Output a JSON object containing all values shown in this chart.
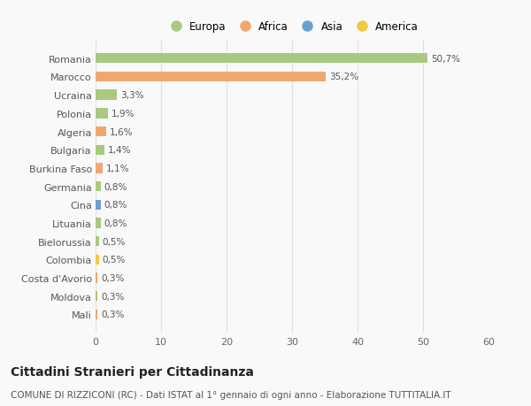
{
  "countries": [
    "Romania",
    "Marocco",
    "Ucraina",
    "Polonia",
    "Algeria",
    "Bulgaria",
    "Burkina Faso",
    "Germania",
    "Cina",
    "Lituania",
    "Bielorussia",
    "Colombia",
    "Costa d'Avorio",
    "Moldova",
    "Mali"
  ],
  "values": [
    50.7,
    35.2,
    3.3,
    1.9,
    1.6,
    1.4,
    1.1,
    0.8,
    0.8,
    0.8,
    0.5,
    0.5,
    0.3,
    0.3,
    0.3
  ],
  "labels": [
    "50,7%",
    "35,2%",
    "3,3%",
    "1,9%",
    "1,6%",
    "1,4%",
    "1,1%",
    "0,8%",
    "0,8%",
    "0,8%",
    "0,5%",
    "0,5%",
    "0,3%",
    "0,3%",
    "0,3%"
  ],
  "continents": [
    "Europa",
    "Africa",
    "Europa",
    "Europa",
    "Africa",
    "Europa",
    "Africa",
    "Europa",
    "Asia",
    "Europa",
    "Europa",
    "America",
    "Africa",
    "Europa",
    "Africa"
  ],
  "continent_colors": {
    "Europa": "#a8c97f",
    "Africa": "#f0a870",
    "Asia": "#6b9fd4",
    "America": "#f5c842"
  },
  "legend_order": [
    "Europa",
    "Africa",
    "Asia",
    "America"
  ],
  "bg_color": "#f9f9f9",
  "grid_color": "#e0e0e0",
  "title": "Cittadini Stranieri per Cittadinanza",
  "subtitle": "COMUNE DI RIZZICONI (RC) - Dati ISTAT al 1° gennaio di ogni anno - Elaborazione TUTTITALIA.IT",
  "xlim": [
    0,
    60
  ],
  "xticks": [
    0,
    10,
    20,
    30,
    40,
    50,
    60
  ],
  "bar_height": 0.55,
  "title_fontsize": 10,
  "subtitle_fontsize": 7.5,
  "tick_fontsize": 8,
  "label_fontsize": 7.5,
  "legend_fontsize": 8.5
}
